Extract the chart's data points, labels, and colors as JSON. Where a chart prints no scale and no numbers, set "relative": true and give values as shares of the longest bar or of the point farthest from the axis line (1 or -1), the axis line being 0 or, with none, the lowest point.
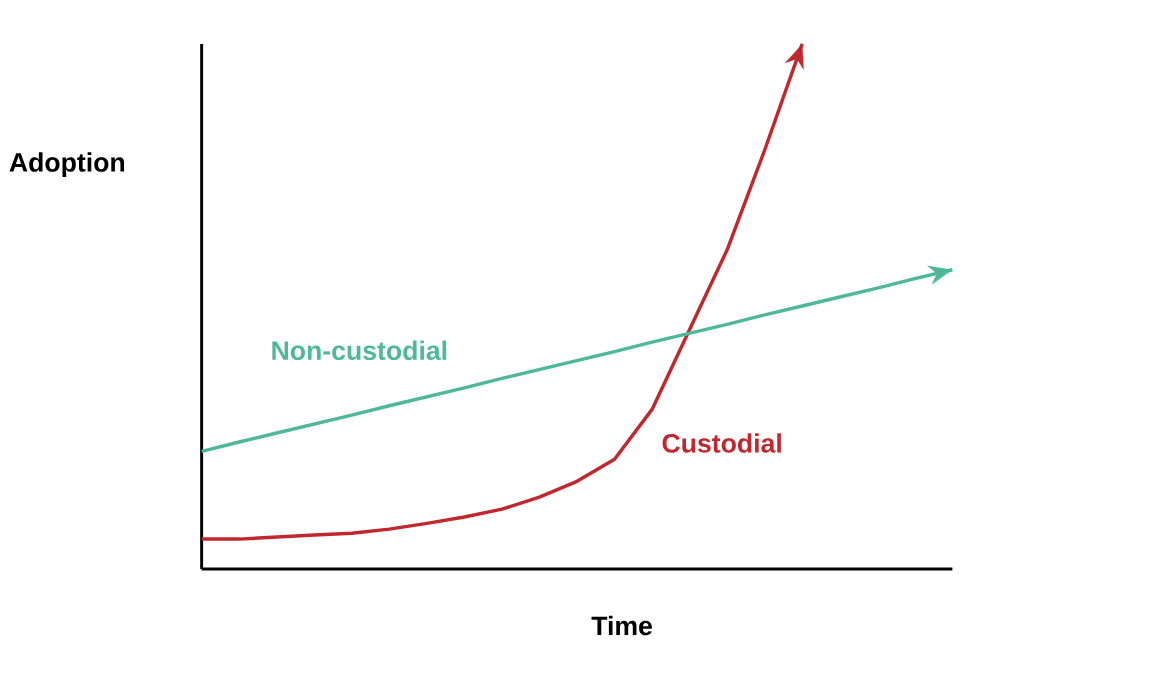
{
  "chart_data": {
    "type": "line",
    "relative": true,
    "xlabel": "Time",
    "ylabel": "Adoption",
    "categories": [
      null,
      null,
      null,
      null,
      null,
      null,
      null,
      null,
      null,
      null,
      null,
      null,
      null,
      null,
      null,
      null,
      null,
      null,
      null,
      null,
      null
    ],
    "series": [
      {
        "name": "Custodial",
        "color": "#c0282d",
        "values": [
          0.057,
          0.057,
          0.061,
          0.065,
          0.068,
          0.076,
          0.087,
          0.099,
          0.114,
          0.137,
          0.167,
          0.209,
          0.304,
          0.456,
          0.608,
          0.798,
          1,
          null,
          null,
          null,
          null
        ]
      },
      {
        "name": "Non-custodial",
        "color": "#4fb89a",
        "values": [
          0.224,
          0.242,
          0.259,
          0.276,
          0.293,
          0.311,
          0.328,
          0.345,
          0.363,
          0.38,
          0.397,
          0.414,
          0.432,
          0.449,
          0.466,
          0.484,
          0.501,
          0.518,
          0.535,
          0.553,
          0.57
        ]
      }
    ],
    "legend": false,
    "marker": "none",
    "line_style": "solid"
  }
}
